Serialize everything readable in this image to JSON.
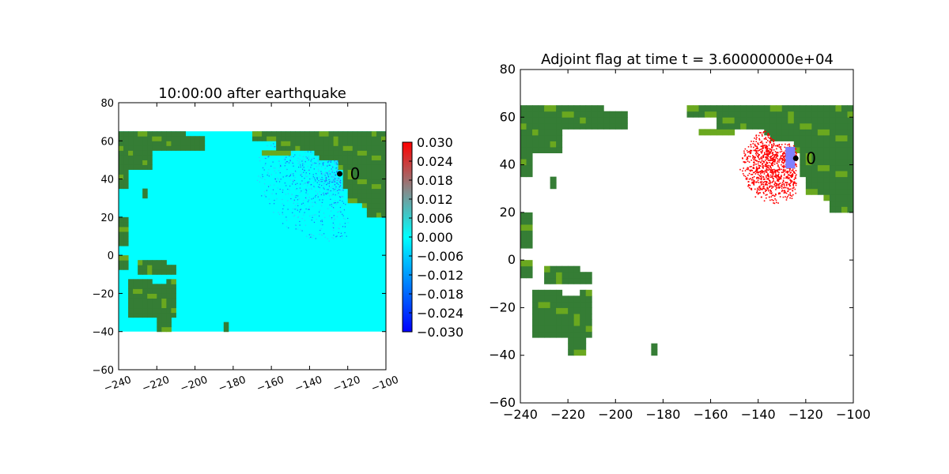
{
  "colors": {
    "ocean_eta": "#00ffff",
    "land_dark": "#357d35",
    "land_light": "#6aa81f",
    "flag_red": "#ff0000",
    "gauge_marker": "#000000",
    "gauge_box": "#8080ff",
    "frame": "#000000",
    "background": "#ffffff"
  },
  "chart_data": [
    {
      "type": "heatmap",
      "title": "10:00:00 after earthquake",
      "xlim": [
        -240,
        -100
      ],
      "ylim": [
        -60,
        80
      ],
      "xticks": [
        -240,
        -220,
        -200,
        -180,
        -160,
        -140,
        -120,
        -100
      ],
      "yticks": [
        -60,
        -40,
        -20,
        0,
        20,
        40,
        60,
        80
      ],
      "xtick_labels": [
        "−240",
        "−220",
        "−200",
        "−180",
        "−160",
        "−140",
        "−120",
        "−100"
      ],
      "ytick_labels": [
        "−60",
        "−40",
        "−20",
        "0",
        "20",
        "40",
        "60",
        "80"
      ],
      "grid": false,
      "domain": {
        "x": [
          -240,
          -100
        ],
        "y": [
          -40,
          65
        ]
      },
      "gauge": {
        "label": "0",
        "lon": -124.2,
        "lat": 42.7
      },
      "colorbar": {
        "range": [
          -0.03,
          0.03
        ],
        "ticks": [
          0.03,
          0.024,
          0.018,
          0.012,
          0.006,
          0.0,
          -0.006,
          -0.012,
          -0.018,
          -0.024,
          -0.03
        ],
        "tick_labels": [
          "0.030",
          "0.024",
          "0.018",
          "0.012",
          "0.006",
          "0.000",
          "−0.006",
          "−0.012",
          "−0.018",
          "−0.024",
          "−0.030"
        ],
        "colors": [
          "#0000ff",
          "#00ffff",
          "#888888",
          "#ff0000"
        ]
      }
    },
    {
      "type": "heatmap",
      "title": "Adjoint flag at time t = 3.60000000e+04",
      "xlim": [
        -240,
        -100
      ],
      "ylim": [
        -60,
        80
      ],
      "xticks": [
        -240,
        -220,
        -200,
        -180,
        -160,
        -140,
        -120,
        -100
      ],
      "yticks": [
        -60,
        -40,
        -20,
        0,
        20,
        40,
        60,
        80
      ],
      "xtick_labels": [
        "−240",
        "−220",
        "−200",
        "−180",
        "−160",
        "−140",
        "−120",
        "−100"
      ],
      "ytick_labels": [
        "−60",
        "−40",
        "−20",
        "0",
        "20",
        "40",
        "60",
        "80"
      ],
      "grid": false,
      "domain": {
        "x": [
          -240,
          -100
        ],
        "y": [
          -40,
          65
        ]
      },
      "gauge": {
        "label": "0",
        "lon": -124.2,
        "lat": 42.7
      },
      "gauge_region": {
        "lon": [
          -128.5,
          -124.5
        ],
        "lat": [
          38.5,
          47.5
        ]
      },
      "flagged_region": {
        "lon": [
          -150,
          -124
        ],
        "lat": [
          17,
          57
        ]
      }
    }
  ]
}
